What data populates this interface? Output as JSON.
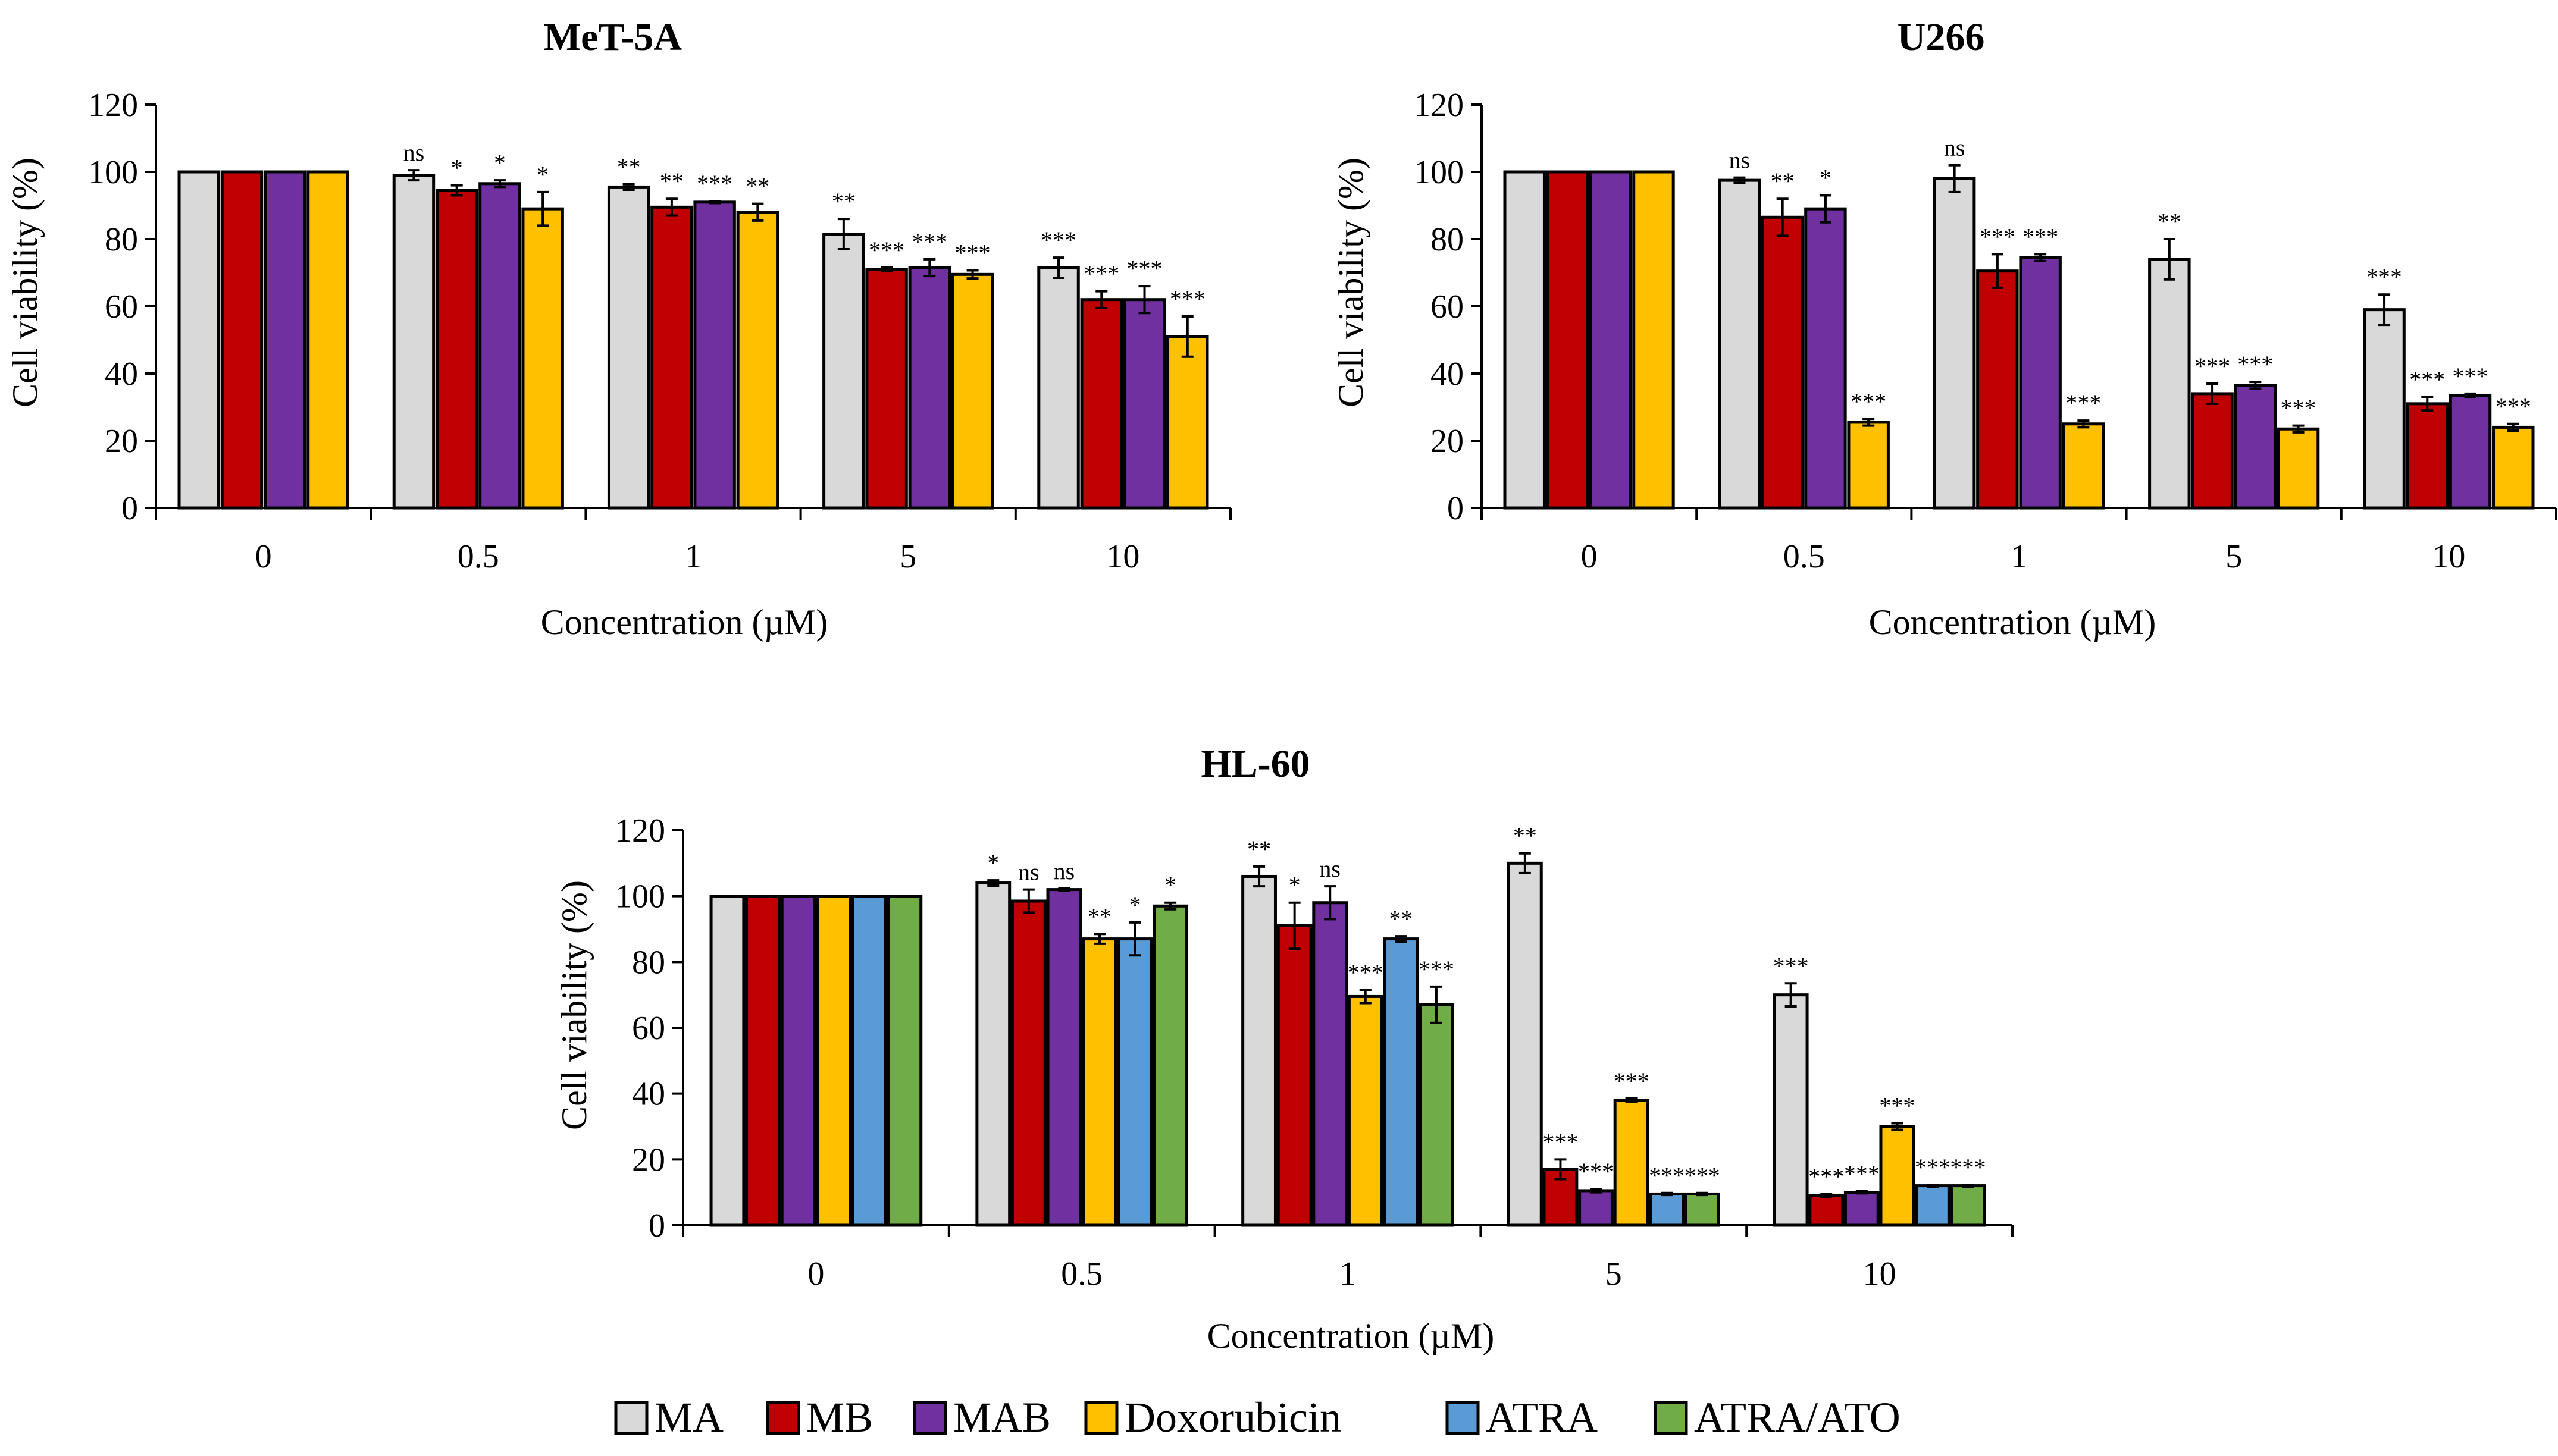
{
  "colors": {
    "MA": "#d9d9d9",
    "MB": "#c00000",
    "MAB": "#7030a0",
    "Doxorubicin": "#ffc000",
    "ATRA": "#5b9bd5",
    "ATRA/ATO": "#70ad47",
    "outline": "#000000"
  },
  "legend": {
    "items": [
      "MA",
      "MB",
      "MAB",
      "Doxorubicin",
      "ATRA",
      "ATRA/ATO"
    ]
  },
  "chart_data": [
    {
      "type": "bar",
      "title": "MeT-5A",
      "xlabel": "Concentration (µM)",
      "ylabel": "Cell viability (%)",
      "ylim": [
        0,
        120
      ],
      "yticks": [
        "0",
        "20",
        "40",
        "60",
        "80",
        "100",
        "120"
      ],
      "categories": [
        "0",
        "0.5",
        "1",
        "5",
        "10"
      ],
      "series": [
        {
          "name": "MA",
          "values": [
            100,
            99,
            95.5,
            81.5,
            71.5
          ],
          "errors": [
            0,
            1.5,
            0.8,
            4.5,
            3
          ],
          "significance": [
            "",
            "ns",
            "**",
            "**",
            "***"
          ]
        },
        {
          "name": "MB",
          "values": [
            100,
            94.5,
            89.5,
            71,
            62
          ],
          "errors": [
            0,
            1.5,
            2.5,
            0.5,
            2.5
          ],
          "significance": [
            "",
            "*",
            "**",
            "***",
            "***"
          ]
        },
        {
          "name": "MAB",
          "values": [
            100,
            96.5,
            91,
            71.5,
            62
          ],
          "errors": [
            0,
            1,
            0.3,
            2.5,
            4
          ],
          "significance": [
            "",
            "*",
            "***",
            "***",
            "***"
          ]
        },
        {
          "name": "Doxorubicin",
          "values": [
            100,
            89,
            88,
            69.5,
            51
          ],
          "errors": [
            0,
            5,
            2.5,
            1.2,
            6
          ],
          "significance": [
            "",
            "*",
            "**",
            "***",
            "***"
          ]
        }
      ]
    },
    {
      "type": "bar",
      "title": "U266",
      "xlabel": "Concentration (µM)",
      "ylabel": "Cell viability (%)",
      "ylim": [
        0,
        120
      ],
      "yticks": [
        "0",
        "20",
        "40",
        "60",
        "80",
        "100",
        "120"
      ],
      "categories": [
        "0",
        "0.5",
        "1",
        "5",
        "10"
      ],
      "series": [
        {
          "name": "MA",
          "values": [
            100,
            97.5,
            98,
            74,
            59
          ],
          "errors": [
            0,
            0.8,
            4,
            6,
            4.5
          ],
          "significance": [
            "",
            "ns",
            "ns",
            "**",
            "***"
          ]
        },
        {
          "name": "MB",
          "values": [
            100,
            86.5,
            70.5,
            34,
            31
          ],
          "errors": [
            0,
            5.5,
            5,
            3,
            2
          ],
          "significance": [
            "",
            "**",
            "***",
            "***",
            "***"
          ]
        },
        {
          "name": "MAB",
          "values": [
            100,
            89,
            74.5,
            36.5,
            33.5
          ],
          "errors": [
            0,
            4,
            1,
            1,
            0.5
          ],
          "significance": [
            "",
            "*",
            "***",
            "***",
            "***"
          ]
        },
        {
          "name": "Doxorubicin",
          "values": [
            100,
            25.5,
            25,
            23.5,
            24
          ],
          "errors": [
            0,
            1,
            1,
            1,
            1
          ],
          "significance": [
            "",
            "***",
            "***",
            "***",
            "***"
          ]
        }
      ]
    },
    {
      "type": "bar",
      "title": "HL-60",
      "xlabel": "Concentration (µM)",
      "ylabel": "Cell viability (%)",
      "ylim": [
        0,
        120
      ],
      "yticks": [
        "0",
        "20",
        "40",
        "60",
        "80",
        "100",
        "120"
      ],
      "categories": [
        "0",
        "0.5",
        "1",
        "5",
        "10"
      ],
      "series": [
        {
          "name": "MA",
          "values": [
            100,
            104,
            106,
            110,
            70
          ],
          "errors": [
            0,
            0.8,
            3,
            3,
            3.5
          ],
          "significance": [
            "",
            "*",
            "**",
            "**",
            "***"
          ]
        },
        {
          "name": "MB",
          "values": [
            100,
            98.5,
            91,
            17,
            9
          ],
          "errors": [
            0,
            3.5,
            7,
            3,
            0.5
          ],
          "significance": [
            "",
            "ns",
            "*",
            "***",
            "***"
          ]
        },
        {
          "name": "MAB",
          "values": [
            100,
            102,
            98,
            10.5,
            10
          ],
          "errors": [
            0,
            0.3,
            5,
            0.5,
            0.3
          ],
          "significance": [
            "",
            "ns",
            "ns",
            "***",
            "***"
          ]
        },
        {
          "name": "Doxorubicin",
          "values": [
            100,
            87,
            69.5,
            38,
            30
          ],
          "errors": [
            0,
            1.5,
            2,
            0.5,
            1
          ],
          "significance": [
            "",
            "**",
            "***",
            "***",
            "***"
          ]
        },
        {
          "name": "ATRA",
          "values": [
            100,
            87,
            87,
            9.5,
            12
          ],
          "errors": [
            0,
            5,
            0.8,
            0.3,
            0.3
          ],
          "significance": [
            "",
            "*",
            "**",
            "***",
            "***"
          ]
        },
        {
          "name": "ATRA/ATO",
          "values": [
            100,
            97,
            67,
            9.5,
            12
          ],
          "errors": [
            0,
            1,
            5.5,
            0.3,
            0.3
          ],
          "significance": [
            "",
            "*",
            "***",
            "***",
            "***"
          ]
        }
      ]
    }
  ]
}
